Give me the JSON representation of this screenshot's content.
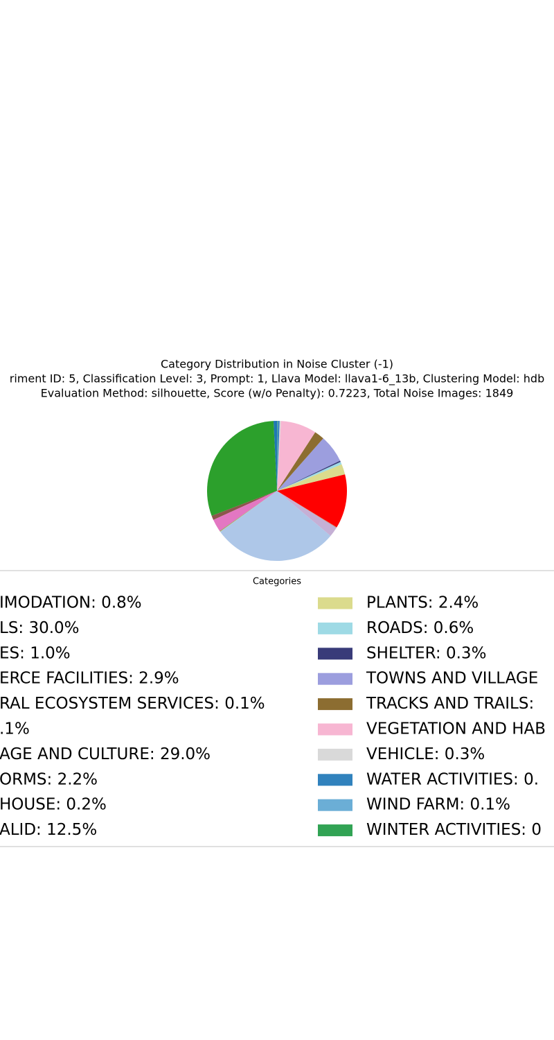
{
  "chart_data": {
    "type": "pie",
    "title": "Category Distribution in Noise Cluster (-1)",
    "subtitle": "riment ID: 5, Classification Level: 3, Prompt: 1, Llava Model: llava1-6_13b, Clustering Model: hdb",
    "subtitle2": "Evaluation Method: silhouette, Score (w/o Penalty): 0.7223, Total Noise Images: 1849",
    "legend_title": "Categories",
    "categories": [
      "IMODATION: 0.8%",
      "LS: 30.0%",
      "ES: 1.0%",
      "ERCE FACILITIES: 2.9%",
      "RAL ECOSYSTEM SERVICES: 0.1%",
      ".1%",
      "AGE AND CULTURE: 29.0%",
      "ORMS: 2.2%",
      "HOUSE: 0.2%",
      "ALID: 12.5%",
      "PLANTS: 2.4%",
      "ROADS: 0.6%",
      "SHELTER: 0.3%",
      "TOWNS AND VILLAGE",
      "TRACKS AND TRAILS:",
      "VEGETATION AND HAB",
      "VEHICLE: 0.3%",
      "WATER ACTIVITIES: 0.",
      "WIND FARM: 0.1%",
      "WINTER ACTIVITIES: 0"
    ],
    "values": [
      0.8,
      30.0,
      1.0,
      2.9,
      0.1,
      0.1,
      29.0,
      2.2,
      0.2,
      12.5,
      2.4,
      0.6,
      0.3,
      6.4,
      2.3,
      8.3,
      0.3,
      0.4,
      0.1,
      0.1
    ],
    "colors": [
      "#1f77b4",
      "#2ca02c",
      "#8c564b",
      "#e377c2",
      "#7f7f7f",
      "#bcbd22",
      "#aec7e8",
      "#c5b0d5",
      "#c49c94",
      "#ff0000",
      "#dbdb8d",
      "#9edae5",
      "#393b79",
      "#9c9ede",
      "#8c6d31",
      "#f7b6d2",
      "#d9d9d9",
      "#3182bd",
      "#6baed6",
      "#31a354"
    ],
    "start_angle": 90
  }
}
